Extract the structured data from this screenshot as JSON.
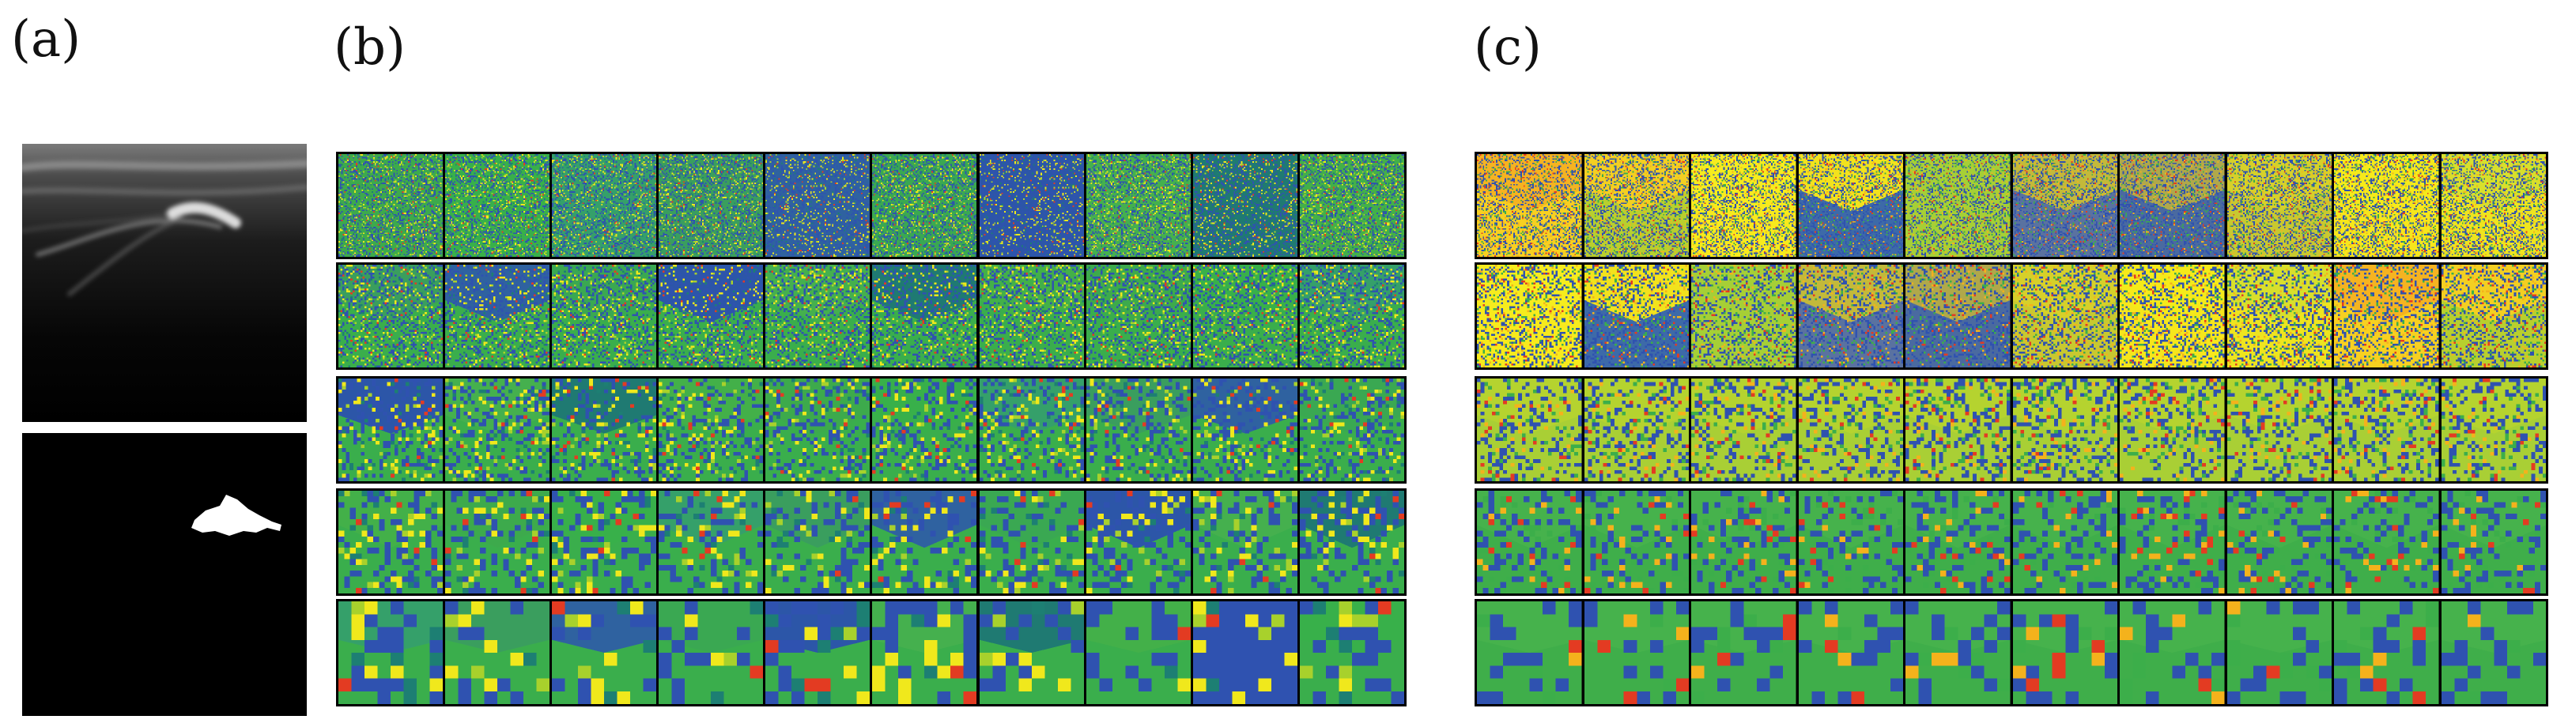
{
  "figure": {
    "panels": {
      "a": {
        "label": "(a)"
      },
      "b": {
        "label": "(b)",
        "palette": "green"
      },
      "c": {
        "label": "(c)",
        "palette": "yellow"
      }
    },
    "rows": 5,
    "maps_per_row": 10,
    "grid_resolutions": [
      72,
      52,
      28,
      18,
      8
    ],
    "colors": {
      "background": "#ffffff",
      "border": "#000000",
      "green_base": "#3cae4a",
      "teal": "#1d7f73",
      "blue": "#2f52b0",
      "yellow": "#f0e81c",
      "yellow_bright": "#fff01e",
      "yellow_green": "#b3d12f",
      "orange": "#f4b21c",
      "red": "#e33b22"
    }
  }
}
